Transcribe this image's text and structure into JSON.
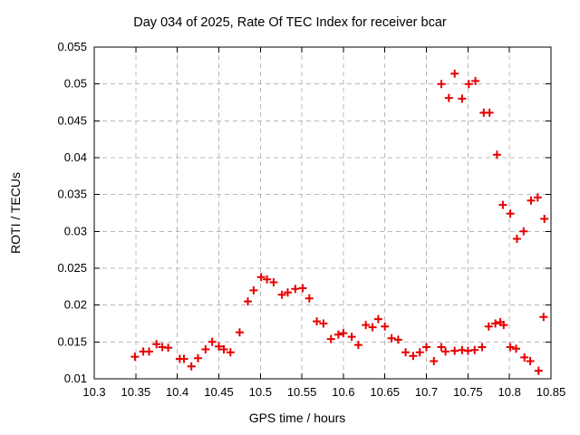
{
  "chart_data": {
    "type": "scatter",
    "title": "Day 034 of 2025, Rate Of TEC Index for receiver bcar",
    "xlabel": "GPS time / hours",
    "ylabel": "ROTI / TECUs",
    "xlim": [
      10.3,
      10.85
    ],
    "ylim": [
      0.01,
      0.055
    ],
    "grid": true,
    "legend": "none",
    "marker": "plus",
    "marker_color": "#e60000",
    "grid_color": "#b8b8b8",
    "xticks": [
      {
        "v": 10.3,
        "label": "10.3"
      },
      {
        "v": 10.35,
        "label": "10.35"
      },
      {
        "v": 10.4,
        "label": "10.4"
      },
      {
        "v": 10.45,
        "label": "10.45"
      },
      {
        "v": 10.5,
        "label": "10.5"
      },
      {
        "v": 10.55,
        "label": "10.55"
      },
      {
        "v": 10.6,
        "label": "10.6"
      },
      {
        "v": 10.65,
        "label": "10.65"
      },
      {
        "v": 10.7,
        "label": "10.7"
      },
      {
        "v": 10.75,
        "label": "10.75"
      },
      {
        "v": 10.8,
        "label": "10.8"
      },
      {
        "v": 10.85,
        "label": "10.85"
      }
    ],
    "yticks": [
      {
        "v": 0.01,
        "label": "0.01"
      },
      {
        "v": 0.015,
        "label": "0.015"
      },
      {
        "v": 0.02,
        "label": "0.02"
      },
      {
        "v": 0.025,
        "label": "0.025"
      },
      {
        "v": 0.03,
        "label": "0.03"
      },
      {
        "v": 0.035,
        "label": "0.035"
      },
      {
        "v": 0.04,
        "label": "0.04"
      },
      {
        "v": 0.045,
        "label": "0.045"
      },
      {
        "v": 0.05,
        "label": "0.05"
      },
      {
        "v": 0.055,
        "label": "0.055"
      }
    ],
    "points": [
      [
        10.349,
        0.013
      ],
      [
        10.359,
        0.0137
      ],
      [
        10.366,
        0.0137
      ],
      [
        10.375,
        0.0147
      ],
      [
        10.382,
        0.0143
      ],
      [
        10.389,
        0.0142
      ],
      [
        10.403,
        0.0127
      ],
      [
        10.408,
        0.0127
      ],
      [
        10.417,
        0.0117
      ],
      [
        10.425,
        0.0128
      ],
      [
        10.434,
        0.014
      ],
      [
        10.442,
        0.015
      ],
      [
        10.45,
        0.0144
      ],
      [
        10.456,
        0.014
      ],
      [
        10.464,
        0.0136
      ],
      [
        10.475,
        0.0163
      ],
      [
        10.485,
        0.0205
      ],
      [
        10.492,
        0.022
      ],
      [
        10.501,
        0.0238
      ],
      [
        10.508,
        0.0235
      ],
      [
        10.516,
        0.0231
      ],
      [
        10.526,
        0.0214
      ],
      [
        10.533,
        0.0217
      ],
      [
        10.542,
        0.0222
      ],
      [
        10.551,
        0.0223
      ],
      [
        10.559,
        0.0209
      ],
      [
        10.568,
        0.0178
      ],
      [
        10.576,
        0.0175
      ],
      [
        10.585,
        0.0154
      ],
      [
        10.594,
        0.016
      ],
      [
        10.6,
        0.0162
      ],
      [
        10.61,
        0.0157
      ],
      [
        10.618,
        0.0146
      ],
      [
        10.627,
        0.0173
      ],
      [
        10.635,
        0.017
      ],
      [
        10.642,
        0.0181
      ],
      [
        10.65,
        0.0171
      ],
      [
        10.658,
        0.0155
      ],
      [
        10.666,
        0.0153
      ],
      [
        10.675,
        0.0136
      ],
      [
        10.684,
        0.0131
      ],
      [
        10.692,
        0.0136
      ],
      [
        10.7,
        0.0143
      ],
      [
        10.709,
        0.0124
      ],
      [
        10.718,
        0.0143
      ],
      [
        10.718,
        0.05
      ],
      [
        10.723,
        0.0137
      ],
      [
        10.727,
        0.0481
      ],
      [
        10.734,
        0.0138
      ],
      [
        10.734,
        0.0514
      ],
      [
        10.743,
        0.0139
      ],
      [
        10.743,
        0.048
      ],
      [
        10.75,
        0.0138
      ],
      [
        10.751,
        0.05
      ],
      [
        10.758,
        0.0139
      ],
      [
        10.759,
        0.0504
      ],
      [
        10.767,
        0.0143
      ],
      [
        10.769,
        0.0461
      ],
      [
        10.775,
        0.0171
      ],
      [
        10.776,
        0.0461
      ],
      [
        10.783,
        0.0175
      ],
      [
        10.785,
        0.0404
      ],
      [
        10.789,
        0.0177
      ],
      [
        10.792,
        0.0336
      ],
      [
        10.793,
        0.0173
      ],
      [
        10.801,
        0.0143
      ],
      [
        10.801,
        0.0324
      ],
      [
        10.808,
        0.0141
      ],
      [
        10.809,
        0.029
      ],
      [
        10.817,
        0.03
      ],
      [
        10.818,
        0.0129
      ],
      [
        10.825,
        0.0124
      ],
      [
        10.826,
        0.0342
      ],
      [
        10.834,
        0.0346
      ],
      [
        10.835,
        0.0111
      ],
      [
        10.841,
        0.0184
      ],
      [
        10.842,
        0.0317
      ]
    ]
  }
}
